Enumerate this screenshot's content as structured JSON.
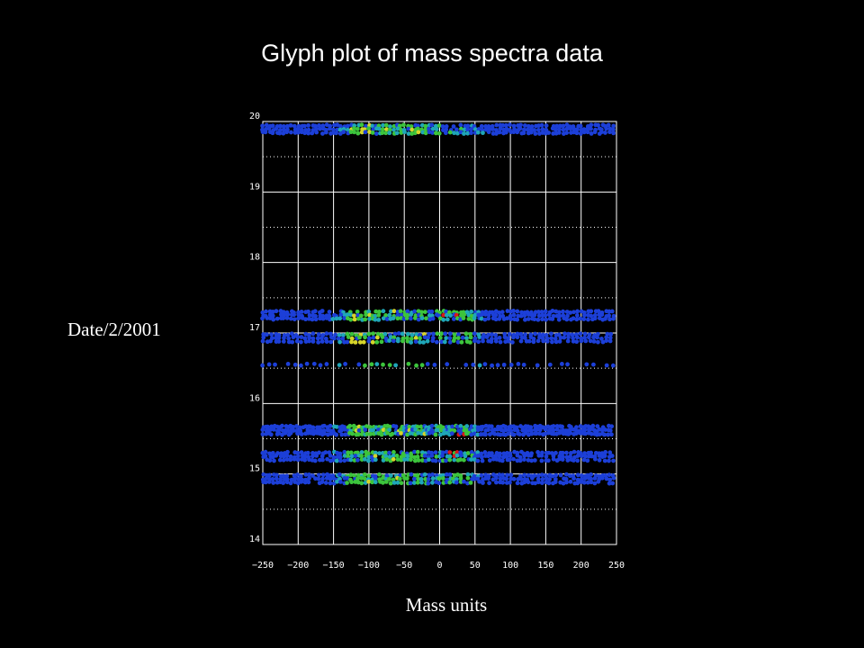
{
  "title": "Glyph plot of mass spectra data",
  "chart_data": {
    "type": "scatter",
    "title": "Glyph plot of mass spectra data",
    "xlabel": "Mass units",
    "ylabel": "Date/2/2001",
    "xlim": [
      -250,
      250
    ],
    "ylim": [
      14,
      20
    ],
    "x_ticks": [
      "−250",
      "−200",
      "−150",
      "−100",
      "−50",
      "0",
      "50",
      "100",
      "150",
      "200",
      "250"
    ],
    "x_tick_values": [
      -250,
      -200,
      -150,
      -100,
      -50,
      0,
      50,
      100,
      150,
      200,
      250
    ],
    "y_ticks": [
      "14",
      "15",
      "16",
      "17",
      "18",
      "19",
      "20"
    ],
    "y_tick_values": [
      14,
      15,
      16,
      17,
      18,
      19,
      20
    ],
    "grid": true,
    "rows": [
      {
        "date": 19.89,
        "x_range": [
          -250,
          245
        ],
        "spacing": 5,
        "dense": true
      },
      {
        "date": 17.25,
        "x_range": [
          -250,
          245
        ],
        "spacing": 5,
        "dense": true
      },
      {
        "date": 16.93,
        "x_range": [
          -250,
          245
        ],
        "spacing": 6,
        "dense": true
      },
      {
        "date": 16.55,
        "x_range": [
          -250,
          245
        ],
        "spacing": 9,
        "dense": false
      },
      {
        "date": 15.62,
        "x_range": [
          -250,
          245
        ],
        "spacing": 4,
        "dense": true
      },
      {
        "date": 15.25,
        "x_range": [
          -250,
          245
        ],
        "spacing": 5,
        "dense": true
      },
      {
        "date": 14.93,
        "x_range": [
          -250,
          245
        ],
        "spacing": 5,
        "dense": true
      }
    ],
    "colors": {
      "low": "#1c3fd8",
      "mid": "#1fa6b8",
      "high": "#3cc43c",
      "peak": "#d6d42a",
      "max": "#d81818"
    }
  }
}
